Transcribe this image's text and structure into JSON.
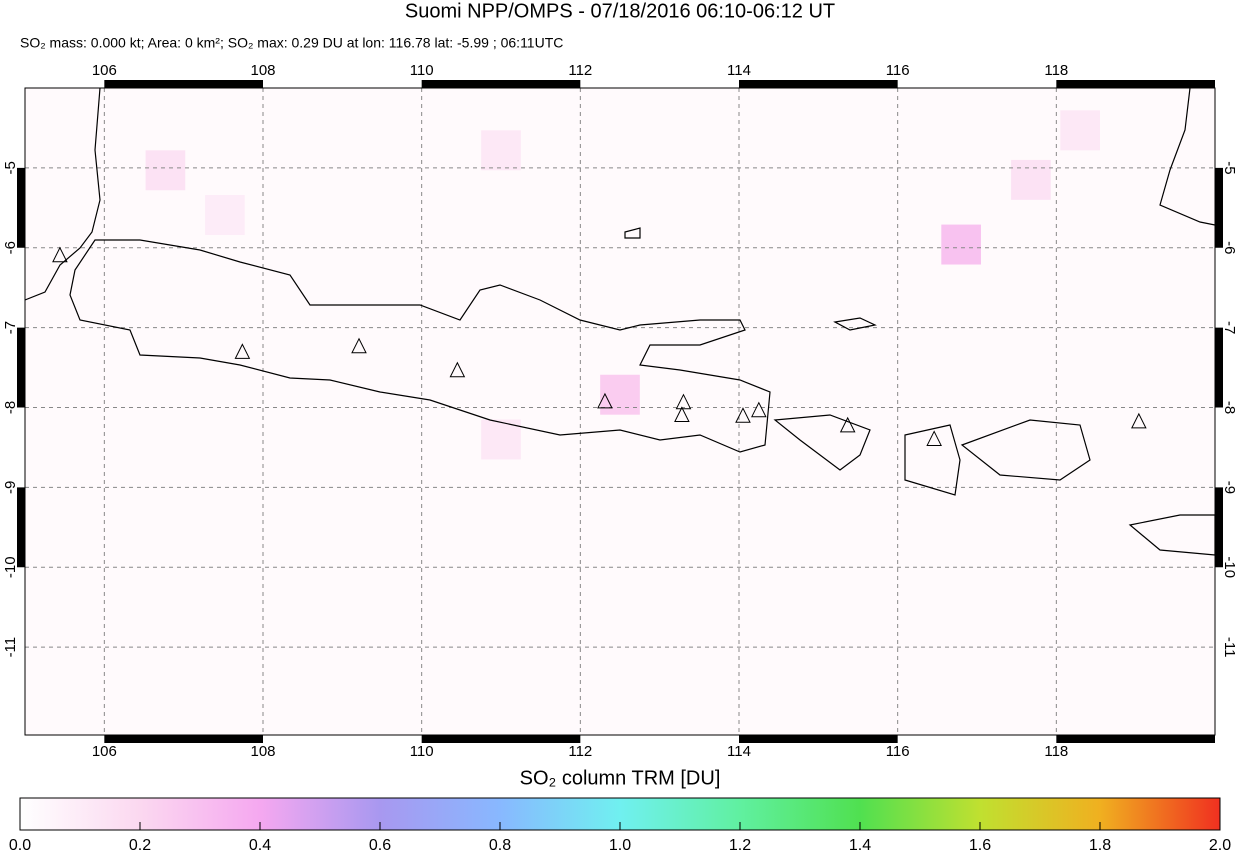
{
  "map": {
    "title": "Suomi NPP/OMPS - 07/18/2016 06:10-06:12 UT",
    "subtitle": "SO₂ mass: 0.000 kt; Area: 0 km²; SO₂ max: 0.29 DU at lon: 116.78 lat: -5.99 ; 06:11UTC",
    "lonlim": [
      105,
      120
    ],
    "latlim": [
      -12.1,
      -4
    ],
    "lonticks": [
      106,
      108,
      110,
      112,
      114,
      116,
      118
    ],
    "latticks": [
      -5,
      -6,
      -7,
      -8,
      -9,
      -10,
      -11
    ],
    "volcanoes": {
      "lon": [
        105.44,
        107.74,
        109.21,
        110.45,
        112.31,
        113.3,
        113.28,
        114.05,
        114.25,
        115.37,
        116.46,
        119.04
      ],
      "lat": [
        -6.1,
        -7.31,
        -7.24,
        -7.54,
        -7.93,
        -7.94,
        -8.1,
        -8.11,
        -8.04,
        -8.23,
        -8.4,
        -8.18
      ]
    },
    "so2_cells": {
      "lon": [
        106.77,
        112.5,
        116.8,
        117.68,
        111.0,
        111.0,
        107.52,
        118.3
      ],
      "lat": [
        -5.03,
        -7.84,
        -5.96,
        -5.15,
        -4.78,
        -8.4,
        -5.59,
        -4.53
      ],
      "values": [
        0.15,
        0.25,
        0.29,
        0.15,
        0.12,
        0.12,
        0.1,
        0.12
      ]
    },
    "colorbar": {
      "title": "SO₂ column TRM [DU]",
      "lim": [
        0,
        2
      ],
      "ticks": [
        {
          "value": 0,
          "label": "0.0"
        },
        {
          "value": 0.2,
          "label": "0.2"
        },
        {
          "value": 0.4,
          "label": "0.4"
        },
        {
          "value": 0.6,
          "label": "0.6"
        },
        {
          "value": 0.8,
          "label": "0.8"
        },
        {
          "value": 1,
          "label": "1.0"
        },
        {
          "value": 1.2,
          "label": "1.2"
        },
        {
          "value": 1.4,
          "label": "1.4"
        },
        {
          "value": 1.6,
          "label": "1.6"
        },
        {
          "value": 1.8,
          "label": "1.8"
        },
        {
          "value": 2,
          "label": "2.0"
        }
      ]
    }
  }
}
